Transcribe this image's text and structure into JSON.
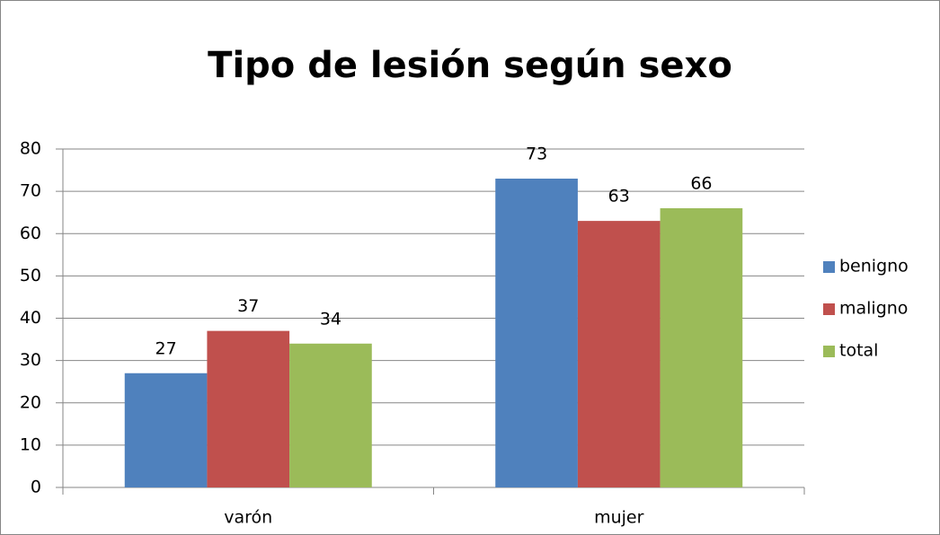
{
  "chart_data": {
    "type": "bar",
    "title": "Tipo de lesión según sexo",
    "categories": [
      "varón",
      "mujer"
    ],
    "series": [
      {
        "name": "benigno",
        "color": "#4f81bd",
        "values": [
          27,
          73
        ]
      },
      {
        "name": "maligno",
        "color": "#c0504d",
        "values": [
          37,
          63
        ]
      },
      {
        "name": "total",
        "color": "#9bbb59",
        "values": [
          34,
          66
        ]
      }
    ],
    "ylim": [
      0,
      80
    ],
    "yticks": [
      0,
      10,
      20,
      30,
      40,
      50,
      60,
      70,
      80
    ],
    "grid": true,
    "legend": "right"
  }
}
